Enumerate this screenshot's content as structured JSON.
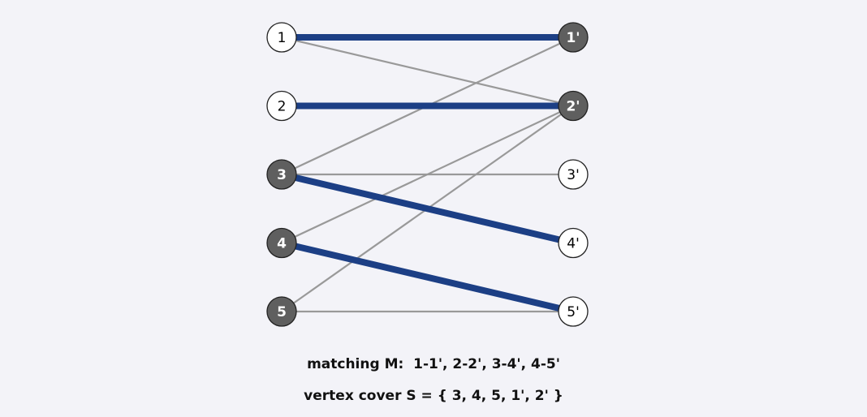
{
  "diagram": {
    "left_nodes": [
      {
        "id": "1",
        "label": "1",
        "in_cover": false
      },
      {
        "id": "2",
        "label": "2",
        "in_cover": false
      },
      {
        "id": "3",
        "label": "3",
        "in_cover": true
      },
      {
        "id": "4",
        "label": "4",
        "in_cover": true
      },
      {
        "id": "5",
        "label": "5",
        "in_cover": true
      }
    ],
    "right_nodes": [
      {
        "id": "1p",
        "label": "1'",
        "in_cover": true
      },
      {
        "id": "2p",
        "label": "2'",
        "in_cover": true
      },
      {
        "id": "3p",
        "label": "3'",
        "in_cover": false
      },
      {
        "id": "4p",
        "label": "4'",
        "in_cover": false
      },
      {
        "id": "5p",
        "label": "5'",
        "in_cover": false
      }
    ],
    "edges": [
      {
        "from": "1",
        "to": "1p",
        "matched": true
      },
      {
        "from": "1",
        "to": "2p",
        "matched": false
      },
      {
        "from": "2",
        "to": "2p",
        "matched": true
      },
      {
        "from": "3",
        "to": "1p",
        "matched": false
      },
      {
        "from": "3",
        "to": "3p",
        "matched": false
      },
      {
        "from": "3",
        "to": "4p",
        "matched": true
      },
      {
        "from": "4",
        "to": "2p",
        "matched": false
      },
      {
        "from": "4",
        "to": "5p",
        "matched": true
      },
      {
        "from": "5",
        "to": "2p",
        "matched": false
      },
      {
        "from": "5",
        "to": "5p",
        "matched": false
      }
    ],
    "colors": {
      "matched_edge": "#1c3f85",
      "unmatched_edge": "#999999",
      "cover_node_fill": "#5f5f5f",
      "cover_node_text": "#ffffff",
      "plain_node_fill": "#ffffff",
      "plain_node_text": "#000000",
      "node_stroke": "#222222",
      "background": "#f3f3f8"
    }
  },
  "captions": {
    "matching": "matching M:  1-1', 2-2', 3-4', 4-5'",
    "vertex_cover": "vertex cover S = { 3, 4, 5, 1', 2' }"
  }
}
